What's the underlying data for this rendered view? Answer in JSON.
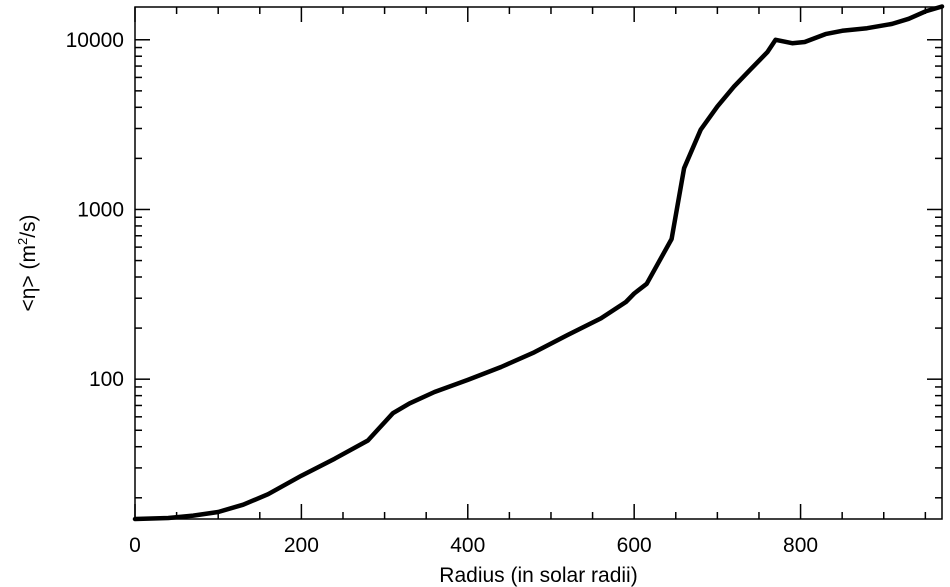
{
  "chart_data": {
    "type": "line",
    "title": "",
    "xlabel": "Radius (in solar radii)",
    "ylabel_parts": {
      "before": "<η> (m",
      "sup": "2",
      "after": "/s)"
    },
    "xlim": [
      0,
      970
    ],
    "ylim": [
      15,
      15600
    ],
    "yscale": "log",
    "grid": false,
    "x_ticks": [
      0,
      200,
      400,
      600,
      800
    ],
    "y_ticks": [
      100,
      1000,
      10000
    ],
    "series": [
      {
        "color": "#000000",
        "x": [
          0,
          40,
          70,
          100,
          130,
          160,
          200,
          240,
          280,
          310,
          330,
          360,
          400,
          440,
          480,
          520,
          560,
          590,
          600,
          615,
          645,
          660,
          680,
          700,
          720,
          740,
          760,
          770,
          790,
          805,
          830,
          850,
          880,
          910,
          930,
          950,
          970
        ],
        "y": [
          15,
          15.2,
          15.7,
          16.5,
          18.2,
          21,
          27,
          34,
          43.5,
          63,
          72,
          84,
          99,
          118,
          144,
          182,
          228,
          285,
          320,
          365,
          670,
          1750,
          2950,
          4050,
          5300,
          6700,
          8450,
          10000,
          9550,
          9700,
          10800,
          11300,
          11700,
          12400,
          13300,
          14700,
          15700
        ]
      }
    ]
  }
}
